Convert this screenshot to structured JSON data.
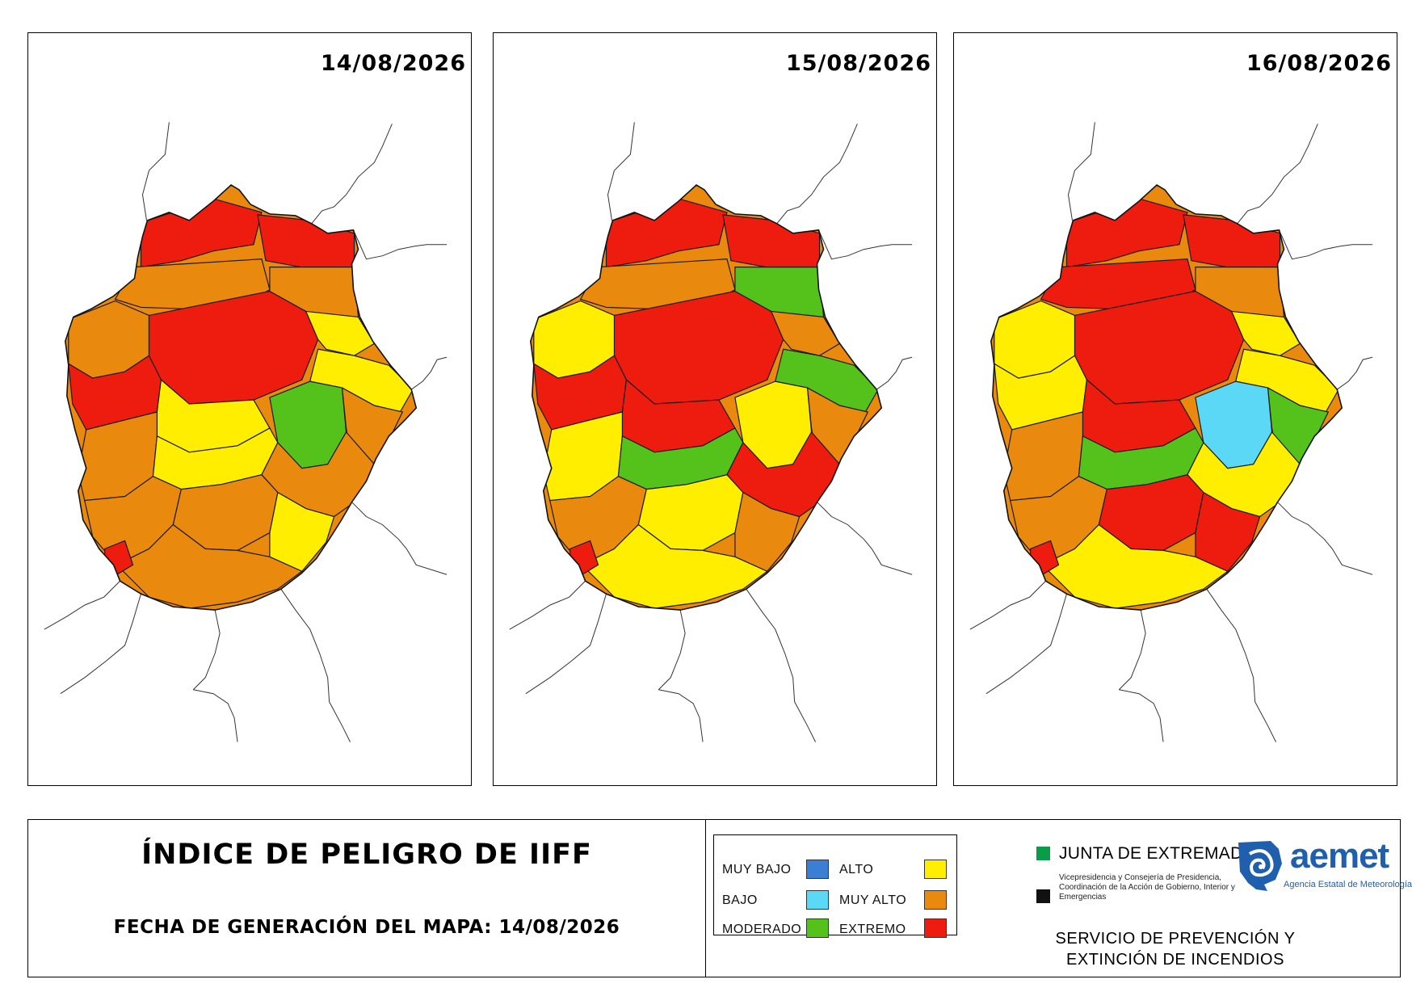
{
  "colors": {
    "muy_bajo": "#3a7fd5",
    "bajo": "#5bd8f5",
    "moderado": "#55c21b",
    "alto": "#ffee00",
    "muy_alto": "#e98a0f",
    "extremo": "#ee1c0f",
    "border": "#000000",
    "junta_green": "#0a9c49",
    "aemet_blue": "#1f5fad"
  },
  "maps": [
    {
      "date": "14/08/2026",
      "zones": [
        "extremo",
        "extremo",
        "muy_alto",
        "extremo",
        "muy_alto",
        "alto",
        "muy_alto",
        "alto",
        "moderado",
        "muy_alto",
        "extremo",
        "alto",
        "muy_alto",
        "alto",
        "muy_alto",
        "muy_alto",
        "muy_alto",
        "alto",
        "muy_alto",
        "extremo"
      ]
    },
    {
      "date": "15/08/2026",
      "zones": [
        "extremo",
        "extremo",
        "muy_alto",
        "extremo",
        "moderado",
        "muy_alto",
        "alto",
        "moderado",
        "alto",
        "muy_alto",
        "extremo",
        "extremo",
        "alto",
        "moderado",
        "extremo",
        "muy_alto",
        "alto",
        "muy_alto",
        "alto",
        "extremo"
      ]
    },
    {
      "date": "16/08/2026",
      "zones": [
        "extremo",
        "extremo",
        "extremo",
        "extremo",
        "muy_alto",
        "alto",
        "alto",
        "alto",
        "bajo",
        "moderado",
        "alto",
        "extremo",
        "muy_alto",
        "moderado",
        "alto",
        "muy_alto",
        "extremo",
        "extremo",
        "alto",
        "extremo"
      ]
    }
  ],
  "footer": {
    "title": "ÍNDICE DE PELIGRO DE IIFF",
    "generation_date": "FECHA DE GENERACIÓN DEL MAPA: 14/08/2026",
    "service_line1": "SERVICIO DE PREVENCIÓN Y",
    "service_line2": "EXTINCIÓN DE INCENDIOS"
  },
  "legend": [
    {
      "label": "MUY BAJO",
      "level": "muy_bajo"
    },
    {
      "label": "BAJO",
      "level": "bajo"
    },
    {
      "label": "MODERADO",
      "level": "moderado"
    },
    {
      "label": "ALTO",
      "level": "alto"
    },
    {
      "label": "MUY ALTO",
      "level": "muy_alto"
    },
    {
      "label": "EXTREMO",
      "level": "extremo"
    }
  ],
  "logos": {
    "junta_name": "JUNTA DE EXTREMADURA",
    "junta_sub": "Vicepresidencia y Consejería de Presidencia, Coordinación de la Acción de Gobierno, Interior y Emergencias",
    "aemet_name": "aemet",
    "aemet_sub": "Agencia Estatal de Meteorología"
  }
}
